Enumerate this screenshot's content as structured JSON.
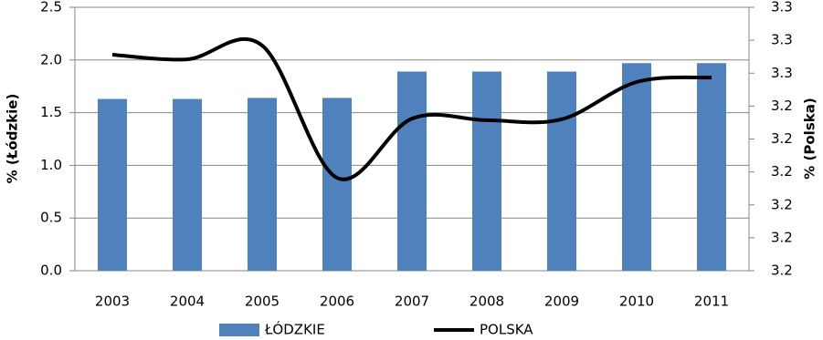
{
  "chart_data": {
    "type": "bar-line",
    "categories": [
      "2003",
      "2004",
      "2005",
      "2006",
      "2007",
      "2008",
      "2009",
      "2010",
      "2011"
    ],
    "ylabel": "% (Łódzkie)",
    "y2label": "% (Polska)",
    "ylim": [
      0,
      2.5
    ],
    "yticks": [
      {
        "value": 0,
        "label": "0.0"
      },
      0.5,
      {
        "value": 1,
        "label": "1.0"
      },
      1.5,
      {
        "value": 2,
        "label": "2.0"
      },
      2.5
    ],
    "y2lim": [
      3.19,
      3.27
    ],
    "y2ticks": [
      {
        "value": 3.19,
        "label": "3.2"
      },
      {
        "value": 3.2,
        "label": "3.2"
      },
      {
        "value": 3.21,
        "label": "3.2"
      },
      {
        "value": 3.22,
        "label": "3.2"
      },
      {
        "value": 3.23,
        "label": "3.2"
      },
      {
        "value": 3.24,
        "label": "3.2"
      },
      {
        "value": 3.25,
        "label": "3.3"
      },
      {
        "value": 3.26,
        "label": "3.3"
      },
      {
        "value": 3.27,
        "label": "3.3"
      }
    ],
    "grid": true,
    "legend": "bottom",
    "series": [
      {
        "name": "ŁÓDZKIE",
        "color": "#4f81bd",
        "kind": "bar",
        "values": [
          1.63,
          1.63,
          1.64,
          1.64,
          1.89,
          1.89,
          1.89,
          1.97,
          1.97
        ]
      },
      {
        "name": "POLSKA",
        "color": "#000000",
        "kind": "line",
        "axis": "y2",
        "values": [
          3.2556,
          3.2542,
          3.2584,
          3.2182,
          3.2362,
          3.2357,
          3.236,
          3.2473,
          3.2487
        ]
      }
    ]
  }
}
